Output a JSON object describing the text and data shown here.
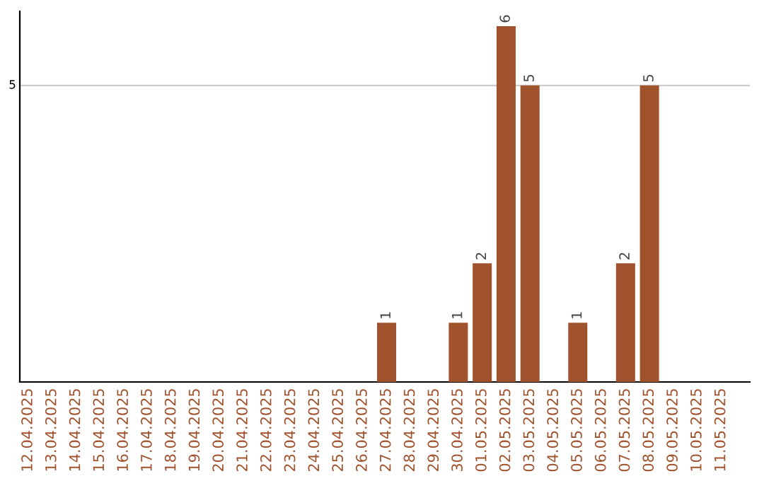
{
  "chart_data": {
    "type": "bar",
    "categories": [
      "12.04.2025",
      "13.04.2025",
      "14.04.2025",
      "15.04.2025",
      "16.04.2025",
      "17.04.2025",
      "18.04.2025",
      "19.04.2025",
      "20.04.2025",
      "21.04.2025",
      "22.04.2025",
      "23.04.2025",
      "24.04.2025",
      "25.04.2025",
      "26.04.2025",
      "27.04.2025",
      "28.04.2025",
      "29.04.2025",
      "30.04.2025",
      "01.05.2025",
      "02.05.2025",
      "03.05.2025",
      "04.05.2025",
      "05.05.2025",
      "06.05.2025",
      "07.05.2025",
      "08.05.2025",
      "09.05.2025",
      "10.05.2025",
      "11.05.2025"
    ],
    "values": [
      null,
      null,
      null,
      null,
      null,
      null,
      null,
      null,
      null,
      null,
      null,
      null,
      null,
      null,
      null,
      1,
      null,
      null,
      1,
      2,
      6,
      5,
      null,
      1,
      null,
      2,
      5,
      null,
      null,
      null
    ],
    "data_labels": true,
    "color": "#a0522d",
    "ylim": [
      0,
      6.25
    ],
    "ref_lines": [
      {
        "axis": "y",
        "value": 5,
        "label": "5",
        "color": "#cccccc"
      }
    ]
  }
}
